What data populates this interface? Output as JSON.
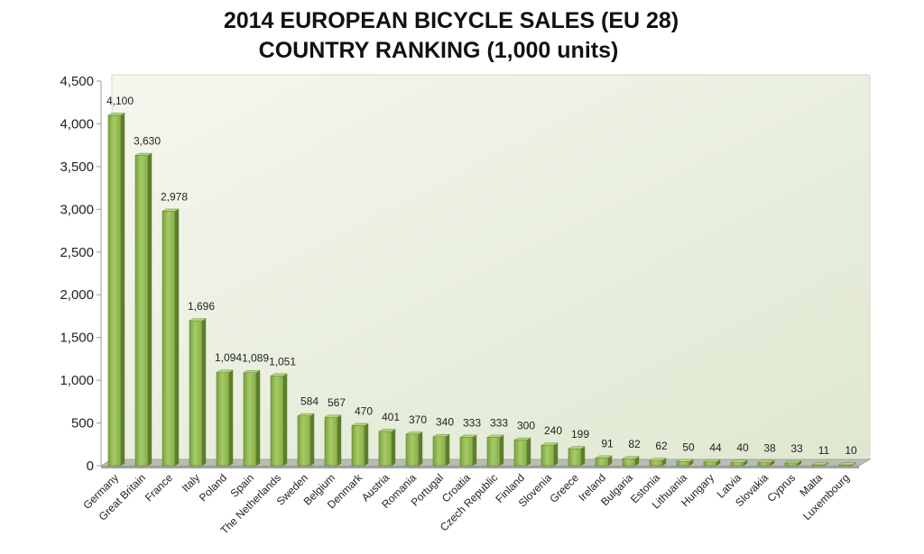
{
  "chart_data": {
    "type": "bar",
    "title_lines": [
      "2014 EUROPEAN BICYCLE SALES (EU 28)",
      "COUNTRY RANKING (1,000 units)"
    ],
    "xlabel": "",
    "ylabel": "",
    "ylim": [
      0,
      4500
    ],
    "yticks": [
      0,
      500,
      1000,
      1500,
      2000,
      2500,
      3000,
      3500,
      4000,
      4500
    ],
    "ytick_labels": [
      "0",
      "500",
      "1,000",
      "1,500",
      "2,000",
      "2,500",
      "3,000",
      "3,500",
      "4,000",
      "4,500"
    ],
    "grid": false,
    "legend": "none",
    "categories": [
      "Germany",
      "Great Britain",
      "France",
      "Italy",
      "Poland",
      "Spain",
      "The Netherlands",
      "Sweden",
      "Belgium",
      "Denmark",
      "Austria",
      "Romania",
      "Portugal",
      "Croatia",
      "Czech Republic",
      "Finland",
      "Slovenia",
      "Greece",
      "Ireland",
      "Bulgaria",
      "Estonia",
      "Lithuania",
      "Hungary",
      "Latvia",
      "Slovakia",
      "Cyprus",
      "Malta",
      "Luxembourg"
    ],
    "values": [
      4100,
      3630,
      2978,
      1696,
      1094,
      1089,
      1051,
      584,
      567,
      470,
      401,
      370,
      340,
      333,
      333,
      300,
      240,
      199,
      91,
      82,
      62,
      50,
      44,
      40,
      38,
      33,
      11,
      10
    ],
    "data_labels": [
      "4,100",
      "3,630",
      "2,978",
      "1,696",
      "1,094",
      "1,089",
      "1,051",
      "584",
      "567",
      "470",
      "401",
      "370",
      "340",
      "333",
      "333",
      "300",
      "240",
      "199",
      "91",
      "82",
      "62",
      "50",
      "44",
      "40",
      "38",
      "33",
      "11",
      "10"
    ],
    "colors": {
      "bar_front": "#8db551",
      "bar_side": "#5e7d2c",
      "bar_top": "#b5d67c",
      "wall": "#e9efdf",
      "floor": "#b9bdb5",
      "axis": "#999999",
      "text": "#222222"
    }
  }
}
